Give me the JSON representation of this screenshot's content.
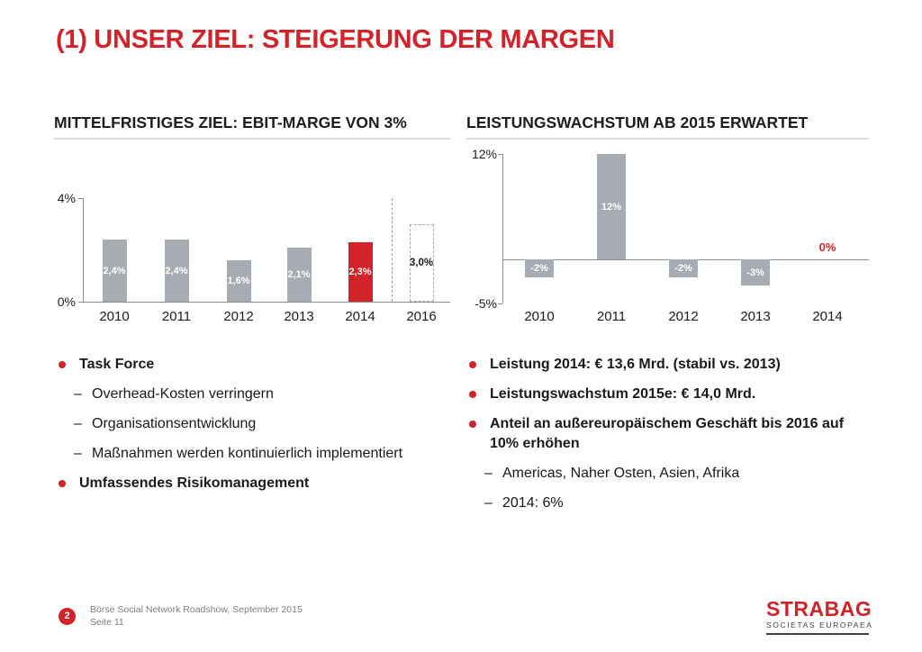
{
  "title": "(1) UNSER ZIEL: STEIGERUNG DER MARGEN",
  "colors": {
    "accent_red": "#d2232a",
    "bar_gray": "#a6acb2",
    "bar_outline_border": "#a9a9a9",
    "axis_gray": "#8c8c8c",
    "separator_gray": "#9b9b9b",
    "underline_gray": "#dadada",
    "footer_gray": "#7f7f7f",
    "logo_dark": "#41414b",
    "text_dark": "#1d1d1d"
  },
  "chart_data": [
    {
      "id": "ebit",
      "type": "bar",
      "title": "MITTELFRISTIGES ZIEL: EBIT-MARGE VON 3%",
      "categories": [
        "2010",
        "2011",
        "2012",
        "2013",
        "2014",
        "2016"
      ],
      "values": [
        2.4,
        2.4,
        1.6,
        2.1,
        2.3,
        3.0
      ],
      "value_labels": [
        "2,4%",
        "2,4%",
        "1,6%",
        "2,1%",
        "2,3%",
        "3,0%"
      ],
      "bar_styles": [
        "gray",
        "gray",
        "gray",
        "gray",
        "red",
        "outline"
      ],
      "ylim": [
        0,
        4
      ],
      "yticks": [
        {
          "value": 4,
          "label": "4%"
        },
        {
          "value": 0,
          "label": "0%"
        }
      ],
      "unit": "%",
      "grid": false,
      "legend": false,
      "separator_before_last": true,
      "xlabel": "",
      "ylabel": ""
    },
    {
      "id": "growth",
      "type": "bar",
      "title": "LEISTUNGSWACHSTUM AB 2015 ERWARTET",
      "categories": [
        "2010",
        "2011",
        "2012",
        "2013",
        "2014"
      ],
      "values": [
        -2,
        12,
        -2,
        -3,
        0
      ],
      "value_labels": [
        "-2%",
        "12%",
        "-2%",
        "-3%",
        "0%"
      ],
      "bar_styles": [
        "gray",
        "gray",
        "gray",
        "gray",
        "zero-label"
      ],
      "ylim": [
        -5,
        12
      ],
      "yticks": [
        {
          "value": 12,
          "label": "12%"
        },
        {
          "value": -5,
          "label": "-5%"
        }
      ],
      "unit": "%",
      "grid": false,
      "legend": false,
      "separator_before_last": false,
      "xlabel": "",
      "ylabel": ""
    }
  ],
  "left": {
    "bullets": [
      {
        "level": 1,
        "text": "Task Force"
      },
      {
        "level": 2,
        "text": "Overhead-Kosten verringern"
      },
      {
        "level": 2,
        "text": "Organisationsentwicklung"
      },
      {
        "level": 2,
        "text": "Maßnahmen werden kontinuierlich implementiert"
      },
      {
        "level": 1,
        "text": "Umfassendes Risikomanagement"
      }
    ]
  },
  "right": {
    "bullets": [
      {
        "level": 1,
        "text": "Leistung 2014: € 13,6 Mrd. (stabil vs. 2013)"
      },
      {
        "level": 1,
        "text": "Leistungswachstum 2015e: € 14,0 Mrd."
      },
      {
        "level": 1,
        "text": "Anteil an außereuropäischem Geschäft bis 2016 auf 10% erhöhen"
      },
      {
        "level": 2,
        "text": "Americas, Naher Osten, Asien, Afrika"
      },
      {
        "level": 2,
        "text": "2014: 6%"
      }
    ]
  },
  "footer": {
    "page_badge": "2",
    "line1": "Börse Social Network Roadshow, September 2015",
    "line2": "Seite 11",
    "logo": {
      "name": "STRABAG",
      "subtitle": "SOCIETAS EUROPAEA"
    }
  }
}
